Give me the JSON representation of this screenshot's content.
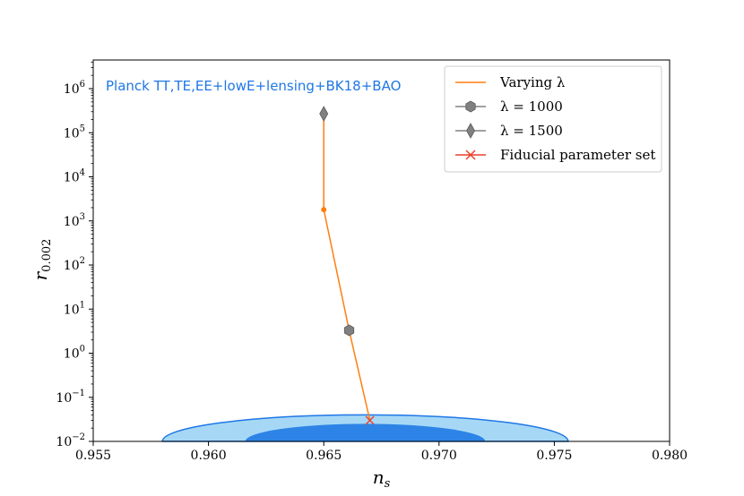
{
  "chart_data": {
    "type": "line",
    "xlabel": "n_s",
    "ylabel": "r_0.002",
    "xlim": [
      0.955,
      0.98
    ],
    "ylim_log10": [
      -2,
      6.65
    ],
    "yscale": "log",
    "xticks": [
      "0.955",
      "0.960",
      "0.965",
      "0.970",
      "0.975",
      "0.980"
    ],
    "xtick_values": [
      0.955,
      0.96,
      0.965,
      0.97,
      0.975,
      0.98
    ],
    "yticks": [
      {
        "base": "10",
        "exp": "−2",
        "log10": -2
      },
      {
        "base": "10",
        "exp": "−1",
        "log10": -1
      },
      {
        "base": "10",
        "exp": "0",
        "log10": 0
      },
      {
        "base": "10",
        "exp": "1",
        "log10": 1
      },
      {
        "base": "10",
        "exp": "2",
        "log10": 2
      },
      {
        "base": "10",
        "exp": "3",
        "log10": 3
      },
      {
        "base": "10",
        "exp": "4",
        "log10": 4
      },
      {
        "base": "10",
        "exp": "5",
        "log10": 5
      },
      {
        "base": "10",
        "exp": "6",
        "log10": 6
      }
    ],
    "annotation": "Planck TT,TE,EE+lowE+lensing+BK18+BAO",
    "series": [
      {
        "name": "Varying λ",
        "color": "#ff7f0e",
        "x": [
          0.967,
          0.9661,
          0.965,
          0.965
        ],
        "y": [
          0.03,
          3.3,
          1800,
          270000
        ]
      }
    ],
    "markers": [
      {
        "name": "λ = 1000",
        "shape": "hexagon",
        "color": "#808080",
        "x": 0.9661,
        "y": 3.3
      },
      {
        "name": "λ = 1500",
        "shape": "diamond",
        "color": "#808080",
        "x": 0.965,
        "y": 270000
      },
      {
        "name": "Fiducial parameter set",
        "shape": "x",
        "color": "#e8412c",
        "x": 0.967,
        "y": 0.03
      }
    ],
    "small_point": {
      "x": 0.965,
      "y": 1800,
      "color": "#ff7f0e"
    },
    "contours": {
      "outer": {
        "color": "#a6d8f6",
        "edge": "#1f77e6",
        "x_range": [
          0.958,
          0.9756
        ],
        "y_top": 0.04
      },
      "inner": {
        "color": "#2d84e6",
        "x_range": [
          0.9616,
          0.972
        ],
        "y_top": 0.025
      }
    },
    "legend": {
      "placement": "top-right",
      "entries": [
        {
          "label": "Varying λ",
          "symbol": "line",
          "color": "#ff7f0e"
        },
        {
          "label": "λ = 1000",
          "symbol": "hexagon",
          "color": "#808080"
        },
        {
          "label": "λ = 1500",
          "symbol": "diamond",
          "color": "#808080"
        },
        {
          "label": "Fiducial parameter set",
          "symbol": "x",
          "color": "#e8412c"
        }
      ]
    }
  }
}
